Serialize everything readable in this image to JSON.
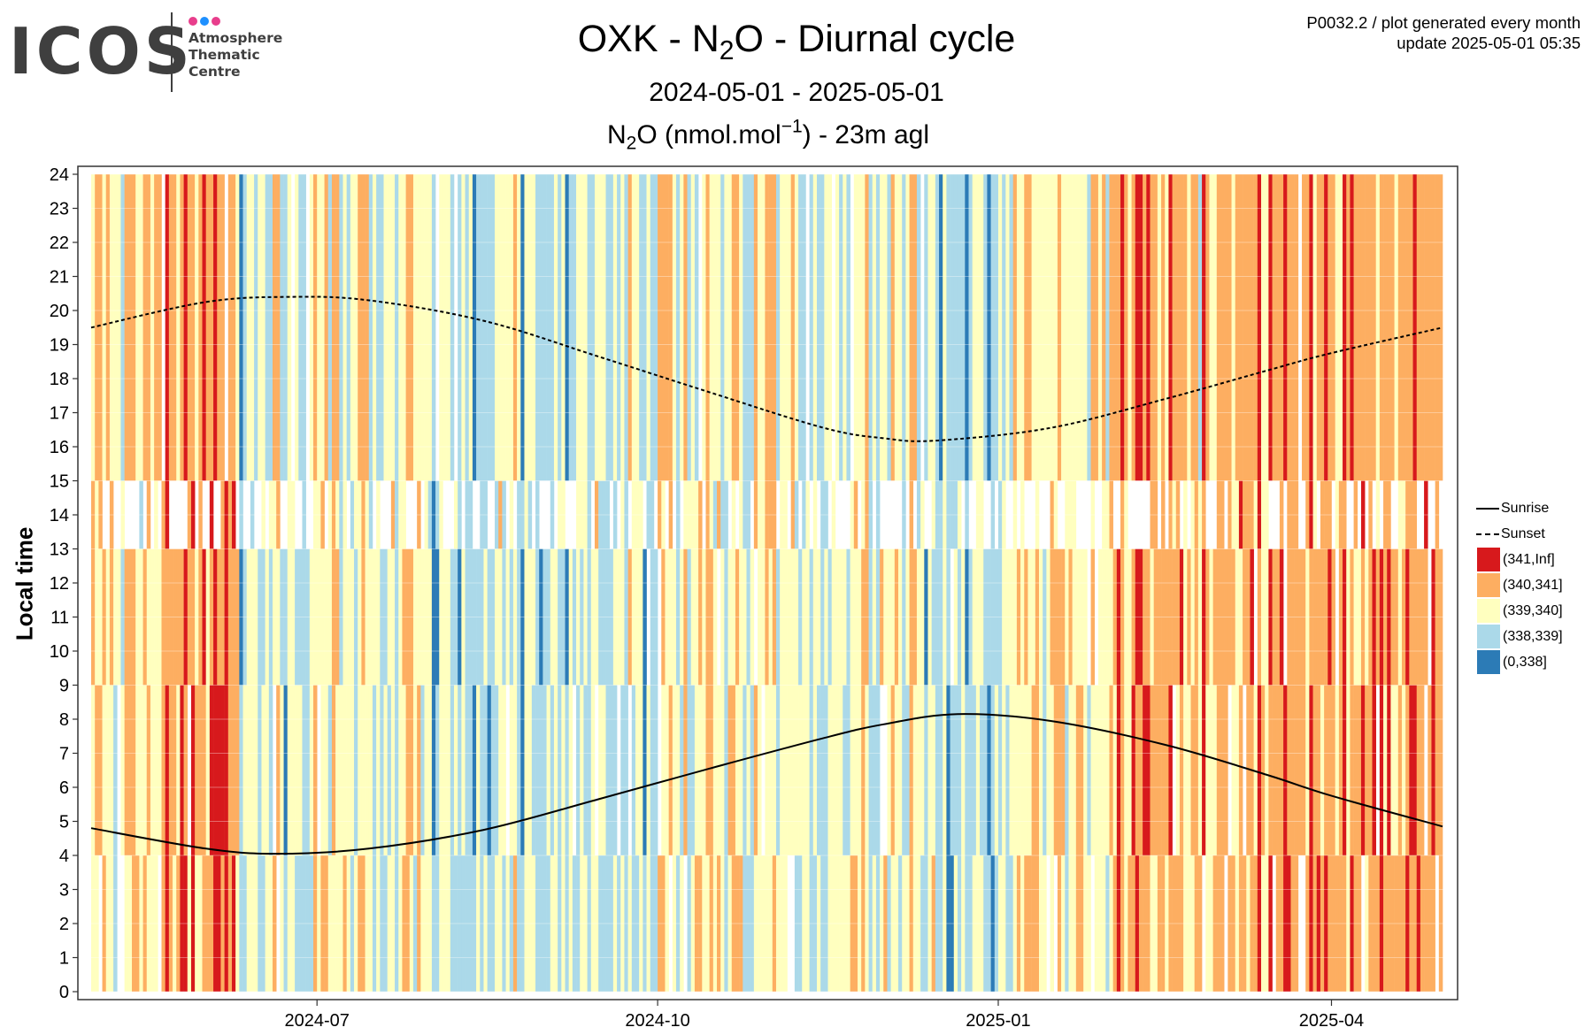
{
  "header": {
    "logo_word": "ICOS",
    "logo_sub": [
      "Atmosphere",
      "Thematic",
      "Centre"
    ],
    "logo_dot_colors": [
      "#e83e8c",
      "#1e90ff",
      "#e83e8c"
    ],
    "meta_line1": "P0032.2 / plot generated every month",
    "meta_line2": "update  2025-05-01 05:35"
  },
  "chart_data": {
    "type": "heatmap",
    "title": {
      "pre": "OXK - N",
      "sub": "2",
      "post": "O - Diurnal cycle"
    },
    "date_range": "2024-05-01 - 2025-05-01",
    "subtitle": {
      "pre": "N",
      "sub": "2",
      "mid": "O (nmol.mol",
      "sup": "−1",
      "post": ") - 23m agl"
    },
    "ylabel": "Local time",
    "xlabel": "",
    "x_start": "2024-05-01",
    "x_end": "2025-05-01",
    "x_ticks": [
      "2024-07",
      "2024-10",
      "2025-01",
      "2025-04"
    ],
    "ylim": [
      0,
      24
    ],
    "y_ticks": [
      0,
      1,
      2,
      3,
      4,
      5,
      6,
      7,
      8,
      9,
      10,
      11,
      12,
      13,
      14,
      15,
      16,
      17,
      18,
      19,
      20,
      21,
      22,
      23,
      24
    ],
    "grid": true,
    "legend_position": "right",
    "bins": [
      {
        "label": "(341,Inf]",
        "color": "#d7191c"
      },
      {
        "label": "(340,341]",
        "color": "#fdae61"
      },
      {
        "label": "(339,340]",
        "color": "#ffffbf"
      },
      {
        "label": "(338,339]",
        "color": "#abd9e9"
      },
      {
        "label": "(0,338]",
        "color": "#2c7bb6"
      }
    ],
    "lines": [
      {
        "name": "Sunrise",
        "style": "solid",
        "x": [
          "2024-05-01",
          "2024-06-01",
          "2024-06-20",
          "2024-07-15",
          "2024-08-15",
          "2024-09-15",
          "2024-10-15",
          "2024-11-15",
          "2024-12-01",
          "2024-12-21",
          "2025-01-15",
          "2025-02-15",
          "2025-03-15",
          "2025-04-01",
          "2025-05-01"
        ],
        "y": [
          4.8,
          4.2,
          4.05,
          4.2,
          4.75,
          5.65,
          6.55,
          7.45,
          7.85,
          8.15,
          7.95,
          7.25,
          6.35,
          5.75,
          4.85
        ]
      },
      {
        "name": "Sunset",
        "style": "dashed",
        "x": [
          "2024-05-01",
          "2024-06-01",
          "2024-06-24",
          "2024-07-15",
          "2024-08-15",
          "2024-09-15",
          "2024-10-15",
          "2024-11-15",
          "2024-12-01",
          "2024-12-15",
          "2025-01-15",
          "2025-02-15",
          "2025-03-15",
          "2025-04-01",
          "2025-05-01"
        ],
        "y": [
          19.5,
          20.25,
          20.4,
          20.3,
          19.7,
          18.65,
          17.6,
          16.55,
          16.25,
          16.18,
          16.55,
          17.4,
          18.25,
          18.75,
          19.5
        ]
      }
    ],
    "day_profile": [
      {
        "from": "2024-05-01",
        "to": "2024-05-20",
        "base": 339.9
      },
      {
        "from": "2024-05-20",
        "to": "2024-06-10",
        "base": 340.5
      },
      {
        "from": "2024-06-10",
        "to": "2024-07-05",
        "base": 339.2
      },
      {
        "from": "2024-07-05",
        "to": "2024-08-01",
        "base": 339.4
      },
      {
        "from": "2024-08-01",
        "to": "2024-09-10",
        "base": 338.8
      },
      {
        "from": "2024-09-10",
        "to": "2024-10-01",
        "base": 338.9
      },
      {
        "from": "2024-10-01",
        "to": "2024-11-01",
        "base": 339.6
      },
      {
        "from": "2024-11-01",
        "to": "2024-12-10",
        "base": 339.3
      },
      {
        "from": "2024-12-10",
        "to": "2025-01-05",
        "base": 338.9
      },
      {
        "from": "2025-01-05",
        "to": "2025-02-01",
        "base": 339.7
      },
      {
        "from": "2025-02-01",
        "to": "2025-03-15",
        "base": 340.3
      },
      {
        "from": "2025-03-15",
        "to": "2025-05-01",
        "base": 340.6
      }
    ]
  },
  "legend": {
    "sunrise_label": "Sunrise",
    "sunset_label": "Sunset"
  }
}
